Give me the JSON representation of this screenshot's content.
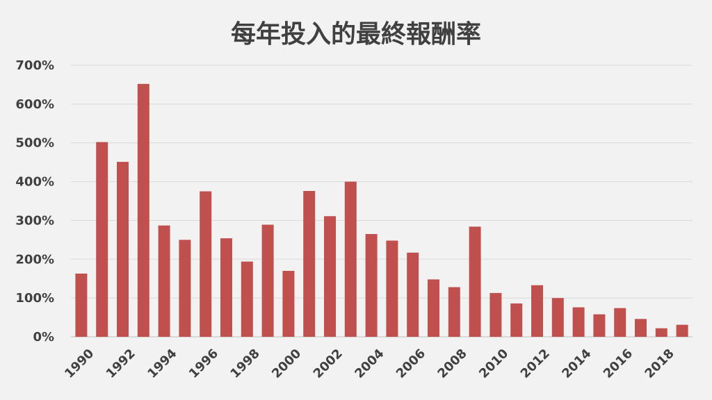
{
  "chart_data": {
    "type": "bar",
    "title": "每年投入的最終報酬率",
    "xlabel": "",
    "ylabel": "",
    "ylim": [
      0,
      700
    ],
    "y_ticks": [
      "0%",
      "100%",
      "200%",
      "300%",
      "400%",
      "500%",
      "600%",
      "700%"
    ],
    "y_tick_values": [
      0,
      100,
      200,
      300,
      400,
      500,
      600,
      700
    ],
    "grid": true,
    "legend": "none",
    "bar_color": "#c0504d",
    "categories": [
      "1990",
      "1991",
      "1992",
      "1993",
      "1994",
      "1995",
      "1996",
      "1997",
      "1998",
      "1999",
      "2000",
      "2001",
      "2002",
      "2003",
      "2004",
      "2005",
      "2006",
      "2007",
      "2008",
      "2009",
      "2010",
      "2011",
      "2012",
      "2013",
      "2014",
      "2015",
      "2016",
      "2017",
      "2018",
      "2019"
    ],
    "x_tick_labels": [
      "1990",
      "",
      "1992",
      "",
      "1994",
      "",
      "1996",
      "",
      "1998",
      "",
      "2000",
      "",
      "2002",
      "",
      "2004",
      "",
      "2006",
      "",
      "2008",
      "",
      "2010",
      "",
      "2012",
      "",
      "2014",
      "",
      "2016",
      "",
      "2018",
      ""
    ],
    "values": [
      163,
      502,
      451,
      652,
      287,
      250,
      375,
      254,
      194,
      289,
      170,
      376,
      311,
      400,
      265,
      248,
      217,
      148,
      128,
      284,
      113,
      86,
      133,
      100,
      76,
      58,
      74,
      46,
      22,
      31
    ]
  }
}
